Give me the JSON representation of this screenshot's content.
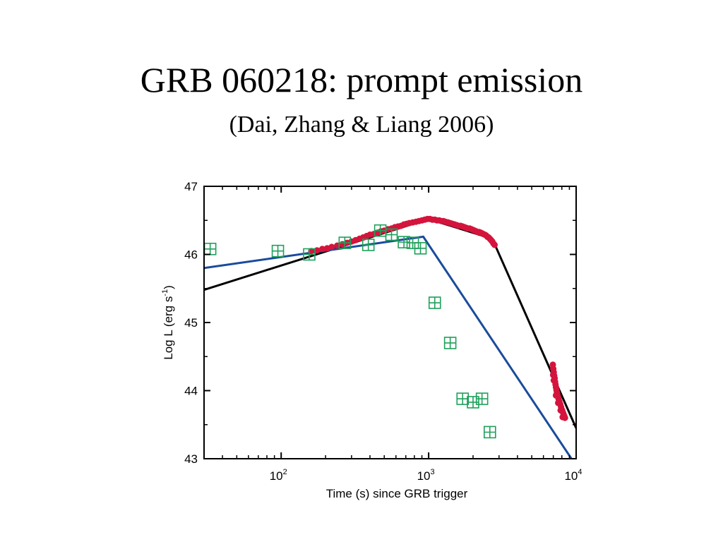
{
  "slide": {
    "title": "GRB 060218: prompt emission",
    "subtitle": "(Dai, Zhang & Liang 2006)"
  },
  "chart_data": {
    "type": "scatter",
    "xscale": "log",
    "xlim": [
      30,
      10000
    ],
    "ylim": [
      43,
      47
    ],
    "xlabel": "Time (s) since GRB trigger",
    "ylabel": {
      "prefix": "Log L (erg s",
      "sup": "-1",
      "suffix": ")"
    },
    "x_ticks": [
      {
        "base": "10",
        "exp": "2",
        "value": 100
      },
      {
        "base": "10",
        "exp": "3",
        "value": 1000
      },
      {
        "base": "10",
        "exp": "4",
        "value": 10000
      }
    ],
    "y_ticks": [
      {
        "label": "43",
        "value": 43
      },
      {
        "label": "44",
        "value": 44
      },
      {
        "label": "45",
        "value": 45
      },
      {
        "label": "46",
        "value": 46
      },
      {
        "label": "47",
        "value": 47
      }
    ],
    "series": [
      {
        "style": "filled-circles",
        "color": "#d4143c",
        "points": [
          [
            160,
            46.05
          ],
          [
            175,
            46.06
          ],
          [
            190,
            46.08
          ],
          [
            205,
            46.09
          ],
          [
            220,
            46.11
          ],
          [
            240,
            46.13
          ],
          [
            260,
            46.15
          ],
          [
            280,
            46.17
          ],
          [
            300,
            46.19
          ],
          [
            320,
            46.21
          ],
          [
            340,
            46.23
          ],
          [
            360,
            46.25
          ],
          [
            380,
            46.27
          ],
          [
            400,
            46.29
          ],
          [
            425,
            46.3
          ],
          [
            450,
            46.32
          ],
          [
            475,
            46.34
          ],
          [
            500,
            46.35
          ],
          [
            530,
            46.37
          ],
          [
            560,
            46.38
          ],
          [
            590,
            46.4
          ],
          [
            620,
            46.41
          ],
          [
            650,
            46.42
          ],
          [
            680,
            46.44
          ],
          [
            710,
            46.45
          ],
          [
            740,
            46.46
          ],
          [
            780,
            46.47
          ],
          [
            820,
            46.48
          ],
          [
            860,
            46.49
          ],
          [
            900,
            46.5
          ],
          [
            940,
            46.51
          ],
          [
            980,
            46.52
          ],
          [
            1020,
            46.52
          ],
          [
            1060,
            46.51
          ],
          [
            1100,
            46.51
          ],
          [
            1140,
            46.5
          ],
          [
            1180,
            46.5
          ],
          [
            1220,
            46.49
          ],
          [
            1260,
            46.49
          ],
          [
            1300,
            46.48
          ],
          [
            1350,
            46.47
          ],
          [
            1400,
            46.46
          ],
          [
            1450,
            46.45
          ],
          [
            1500,
            46.44
          ],
          [
            1550,
            46.43
          ],
          [
            1600,
            46.42
          ],
          [
            1650,
            46.42
          ],
          [
            1700,
            46.41
          ],
          [
            1750,
            46.4
          ],
          [
            1800,
            46.39
          ],
          [
            1850,
            46.38
          ],
          [
            1900,
            46.38
          ],
          [
            1950,
            46.37
          ],
          [
            2000,
            46.36
          ],
          [
            2050,
            46.35
          ],
          [
            2100,
            46.34
          ],
          [
            2150,
            46.33
          ],
          [
            2200,
            46.33
          ],
          [
            2250,
            46.32
          ],
          [
            2300,
            46.31
          ],
          [
            2350,
            46.3
          ],
          [
            2400,
            46.29
          ],
          [
            2450,
            46.28
          ],
          [
            2500,
            46.26
          ],
          [
            2550,
            46.25
          ],
          [
            2600,
            46.23
          ],
          [
            2650,
            46.21
          ],
          [
            2700,
            46.19
          ],
          [
            2750,
            46.16
          ],
          [
            2800,
            46.14
          ],
          [
            6950,
            44.38
          ],
          [
            7000,
            44.32
          ],
          [
            7050,
            44.27
          ],
          [
            7100,
            44.22
          ],
          [
            7150,
            44.18
          ],
          [
            7200,
            44.13
          ],
          [
            7250,
            44.09
          ],
          [
            7300,
            44.05
          ],
          [
            7350,
            44.01
          ],
          [
            7400,
            43.98
          ],
          [
            7450,
            43.95
          ],
          [
            7500,
            43.92
          ],
          [
            7600,
            43.88
          ],
          [
            7700,
            43.84
          ],
          [
            7800,
            43.8
          ],
          [
            7900,
            43.76
          ],
          [
            8000,
            43.72
          ],
          [
            8100,
            43.69
          ],
          [
            8200,
            43.66
          ],
          [
            8300,
            43.63
          ],
          [
            8400,
            43.6
          ],
          [
            7050,
            44.15
          ],
          [
            7300,
            43.93
          ],
          [
            7550,
            43.82
          ],
          [
            7850,
            43.71
          ],
          [
            8100,
            43.61
          ],
          [
            6980,
            44.23
          ]
        ]
      },
      {
        "style": "open-squares-crossed",
        "color": "#1fa05a",
        "points": [
          [
            33,
            46.08
          ],
          [
            95,
            46.05
          ],
          [
            155,
            46.0
          ],
          [
            270,
            46.17
          ],
          [
            390,
            46.14
          ],
          [
            470,
            46.35
          ],
          [
            560,
            46.29
          ],
          [
            680,
            46.18
          ],
          [
            780,
            46.17
          ],
          [
            880,
            46.09
          ],
          [
            1100,
            45.29
          ],
          [
            1400,
            44.7
          ],
          [
            1700,
            43.88
          ],
          [
            2000,
            43.83
          ],
          [
            2300,
            43.88
          ],
          [
            2600,
            43.39
          ]
        ]
      },
      {
        "style": "line",
        "color": "#000000",
        "points": [
          [
            30,
            45.48
          ],
          [
            1000,
            46.52
          ],
          [
            2700,
            46.23
          ],
          [
            10000,
            43.45
          ]
        ]
      },
      {
        "style": "line",
        "color": "#1a4b9c",
        "points": [
          [
            30,
            45.8
          ],
          [
            920,
            46.26
          ],
          [
            9300,
            43.0
          ]
        ]
      }
    ]
  }
}
